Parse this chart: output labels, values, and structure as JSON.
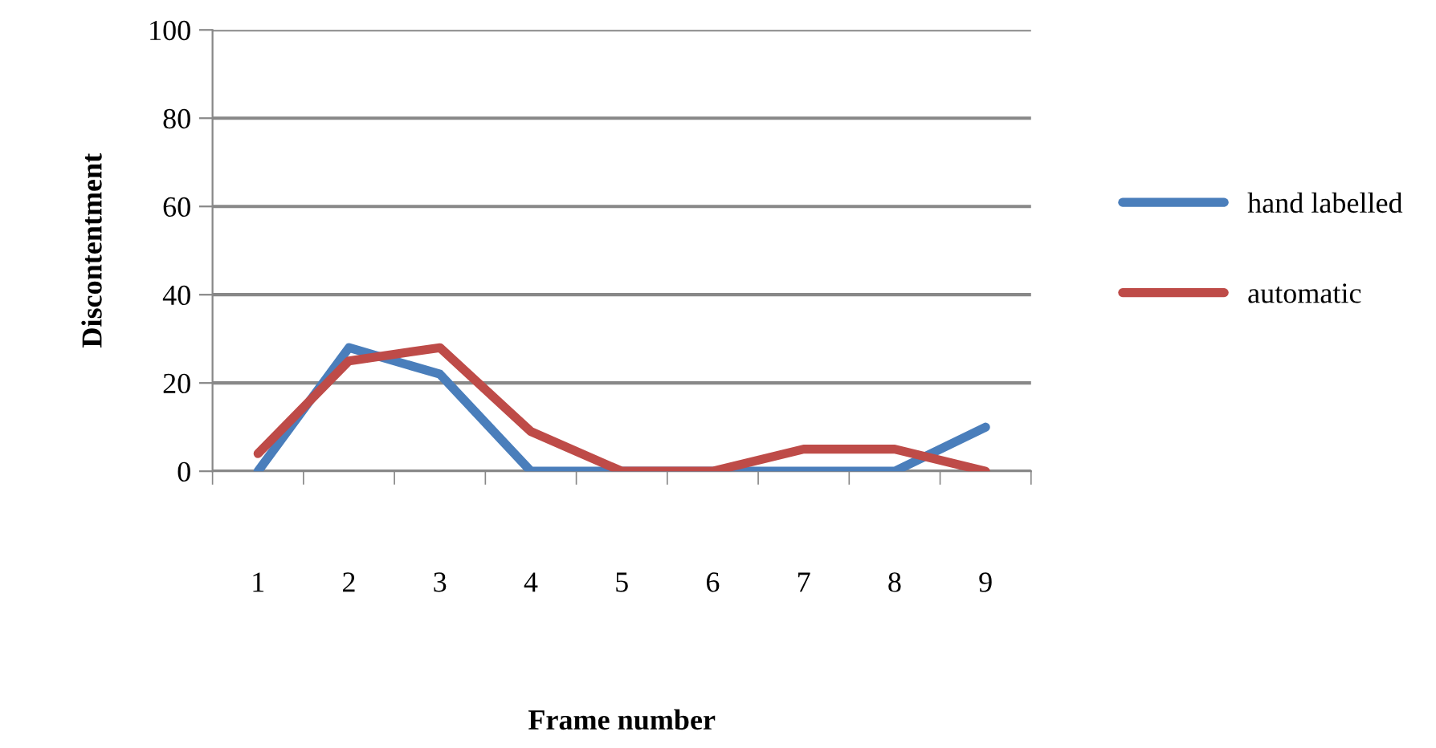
{
  "chart_data": {
    "type": "line",
    "xlabel": "Frame number",
    "ylabel": "Discontentment",
    "categories": [
      "1",
      "2",
      "3",
      "4",
      "5",
      "6",
      "7",
      "8",
      "9"
    ],
    "series": [
      {
        "name": "hand labelled",
        "color": "#4a7ebb",
        "values": [
          0,
          28,
          22,
          0,
          0,
          0,
          0,
          0,
          10
        ]
      },
      {
        "name": "automatic",
        "color": "#be4b48",
        "values": [
          4,
          25,
          28,
          9,
          0,
          0,
          5,
          5,
          0
        ]
      }
    ],
    "ylim": [
      0,
      100
    ],
    "yticks": [
      0,
      20,
      40,
      60,
      80,
      100
    ],
    "grid": "y",
    "legend": "right",
    "marker": "none",
    "line_style": "solid"
  }
}
